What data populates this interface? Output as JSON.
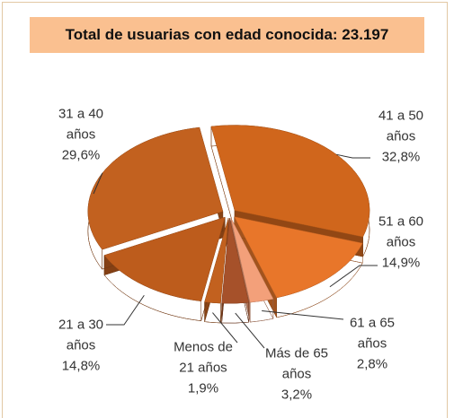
{
  "chart_data": {
    "type": "pie3d",
    "title": "Total de usuarias con edad conocida: 23.197",
    "categories": [
      "41 a 50 años",
      "51 a 60 años",
      "61 a 65 años",
      "Más de 65 años",
      "Menos de 21 años",
      "21 a 30 años",
      "31 a 40 años"
    ],
    "values": [
      32.8,
      14.9,
      2.8,
      3.2,
      1.9,
      14.8,
      29.6
    ],
    "value_labels": [
      "32,8%",
      "14,9%",
      "2,8%",
      "3,2%",
      "1,9%",
      "14,8%",
      "29,6%"
    ],
    "colors": [
      "#d0661c",
      "#e8762a",
      "#f3a07a",
      "#a6512a",
      "#c2611f",
      "#bd5c1c",
      "#c2611f"
    ]
  }
}
